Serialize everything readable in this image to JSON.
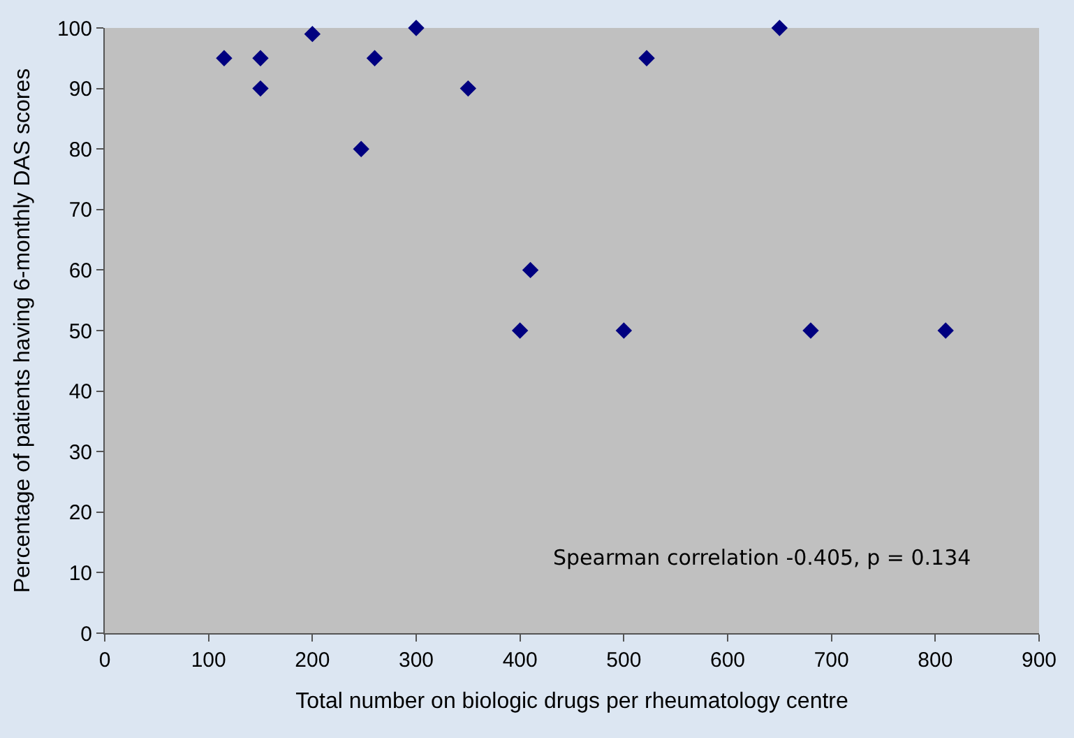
{
  "chart_data": {
    "type": "scatter",
    "xlabel": "Total number on biologic drugs per rheumatology centre",
    "ylabel": "Percentage of patients having 6-monthly DAS scores",
    "x": [
      115,
      150,
      150,
      200,
      247,
      260,
      300,
      350,
      400,
      410,
      500,
      522,
      650,
      680,
      810
    ],
    "series": [
      {
        "color": "#000080",
        "values": [
          95,
          95,
          90,
          99,
          80,
          95,
          100,
          90,
          50,
          60,
          50,
          95,
          100,
          50,
          50
        ]
      }
    ],
    "xlim": [
      0,
      900
    ],
    "xticks": [
      0,
      100,
      200,
      300,
      400,
      500,
      600,
      700,
      800,
      900
    ],
    "ylim": [
      0,
      100
    ],
    "yticks": [
      0,
      10,
      20,
      30,
      40,
      50,
      60,
      70,
      80,
      90,
      100
    ],
    "annotations": [
      "Spearman correlation -0.405, p = 0.134"
    ],
    "marker": "diamond",
    "grid": false
  }
}
